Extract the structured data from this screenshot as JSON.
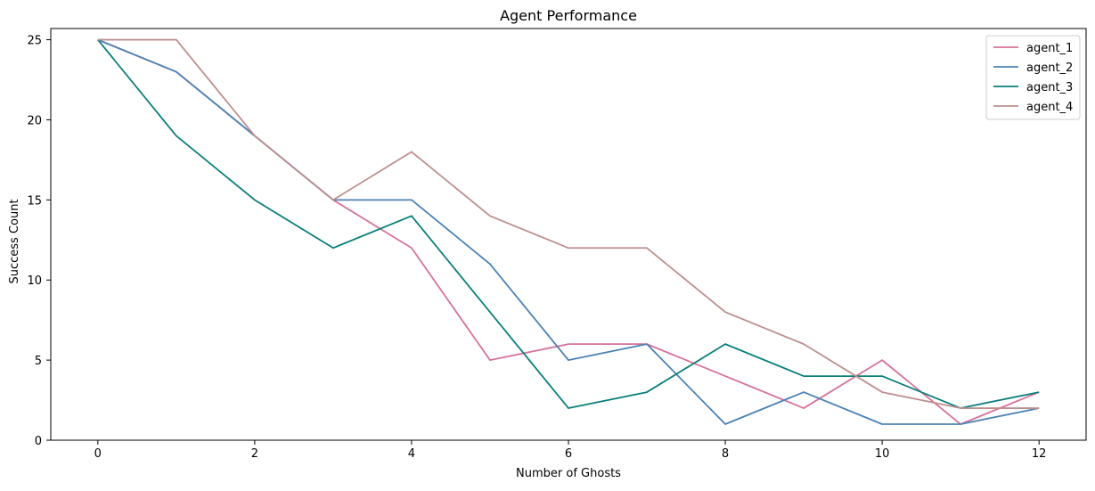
{
  "chart_data": {
    "type": "line",
    "title": "Agent Performance",
    "xlabel": "Number of Ghosts",
    "ylabel": "Success Count",
    "x": [
      0,
      1,
      2,
      3,
      4,
      5,
      6,
      7,
      8,
      9,
      10,
      11,
      12
    ],
    "xlim": [
      -0.6,
      12.6
    ],
    "ylim": [
      0,
      25.7
    ],
    "xticks": [
      0,
      2,
      4,
      6,
      8,
      10,
      12
    ],
    "yticks": [
      0,
      5,
      10,
      15,
      20,
      25
    ],
    "grid": false,
    "legend_position": "top-right",
    "series": [
      {
        "name": "agent_1",
        "color": "#d6729a",
        "values": [
          25,
          23,
          19,
          15,
          12,
          5,
          6,
          6,
          4,
          2,
          5,
          1,
          3
        ]
      },
      {
        "name": "agent_2",
        "color": "#4a82b4",
        "values": [
          25,
          23,
          19,
          15,
          15,
          11,
          5,
          6,
          1,
          3,
          1,
          1,
          2
        ]
      },
      {
        "name": "agent_3",
        "color": "#0a7f7a",
        "values": [
          25,
          19,
          15,
          12,
          14,
          8,
          2,
          3,
          6,
          4,
          4,
          2,
          3
        ]
      },
      {
        "name": "agent_4",
        "color": "#bc8f8f",
        "values": [
          25,
          25,
          19,
          15,
          18,
          14,
          12,
          12,
          8,
          6,
          3,
          2,
          2
        ]
      }
    ]
  }
}
